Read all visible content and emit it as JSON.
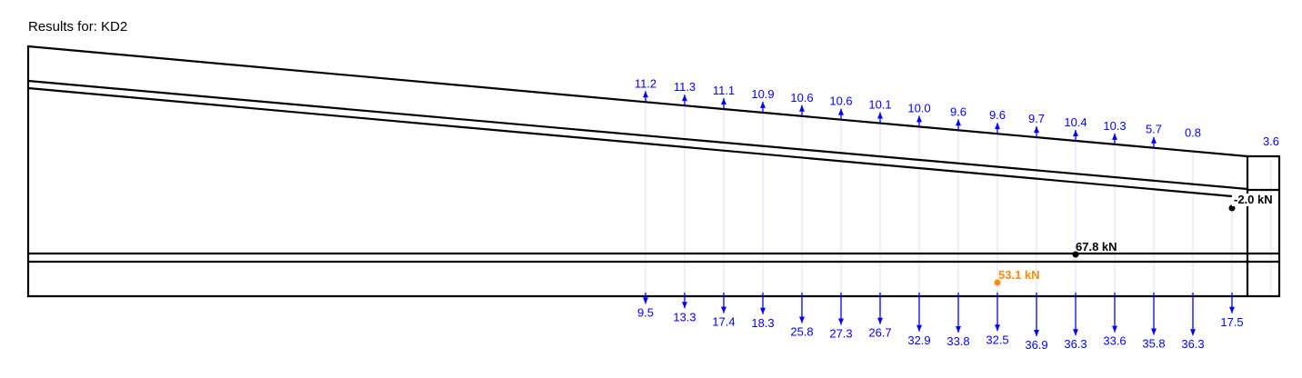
{
  "title": "Results for: KD2",
  "colors": {
    "reaction": "#0000ff",
    "structure": "#000000",
    "highlight": "#ff8c00",
    "guide": "#dcdcf8"
  },
  "top_reactions": [
    "11.2",
    "11.3",
    "11.1",
    "10.9",
    "10.6",
    "10.6",
    "10.1",
    "10.0",
    "9.6",
    "9.6",
    "9.7",
    "10.4",
    "10.3",
    "5.7",
    "0.8",
    "3.6"
  ],
  "bottom_reactions": [
    "9.5",
    "13.3",
    "17.4",
    "18.3",
    "25.8",
    "27.3",
    "26.7",
    "32.9",
    "33.8",
    "32.5",
    "36.9",
    "36.3",
    "33.6",
    "35.8",
    "36.3",
    "17.5"
  ],
  "point_loads": [
    {
      "label": "-2.0 kN",
      "color": "#000000"
    },
    {
      "label": "67.8 kN",
      "color": "#000000"
    },
    {
      "label": "53.1 kN",
      "color": "#ff8c00"
    }
  ]
}
